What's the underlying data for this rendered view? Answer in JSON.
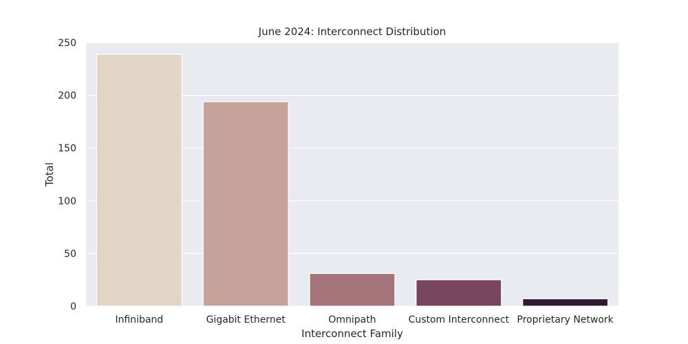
{
  "chart_data": {
    "type": "bar",
    "title": "June 2024: Interconnect Distribution",
    "xlabel": "Interconnect Family",
    "ylabel": "Total",
    "categories": [
      "Infiniband",
      "Gigabit Ethernet",
      "Omnipath",
      "Custom Interconnect",
      "Proprietary Network"
    ],
    "values": [
      239,
      194,
      31,
      25,
      7
    ],
    "ylim": [
      0,
      250
    ],
    "yticks": [
      0,
      50,
      100,
      150,
      200,
      250
    ],
    "colors": [
      "#e2d5c7",
      "#c5a39b",
      "#a6737b",
      "#76465f",
      "#2e1a31"
    ],
    "grid": true,
    "background": "#eaeaf2"
  }
}
